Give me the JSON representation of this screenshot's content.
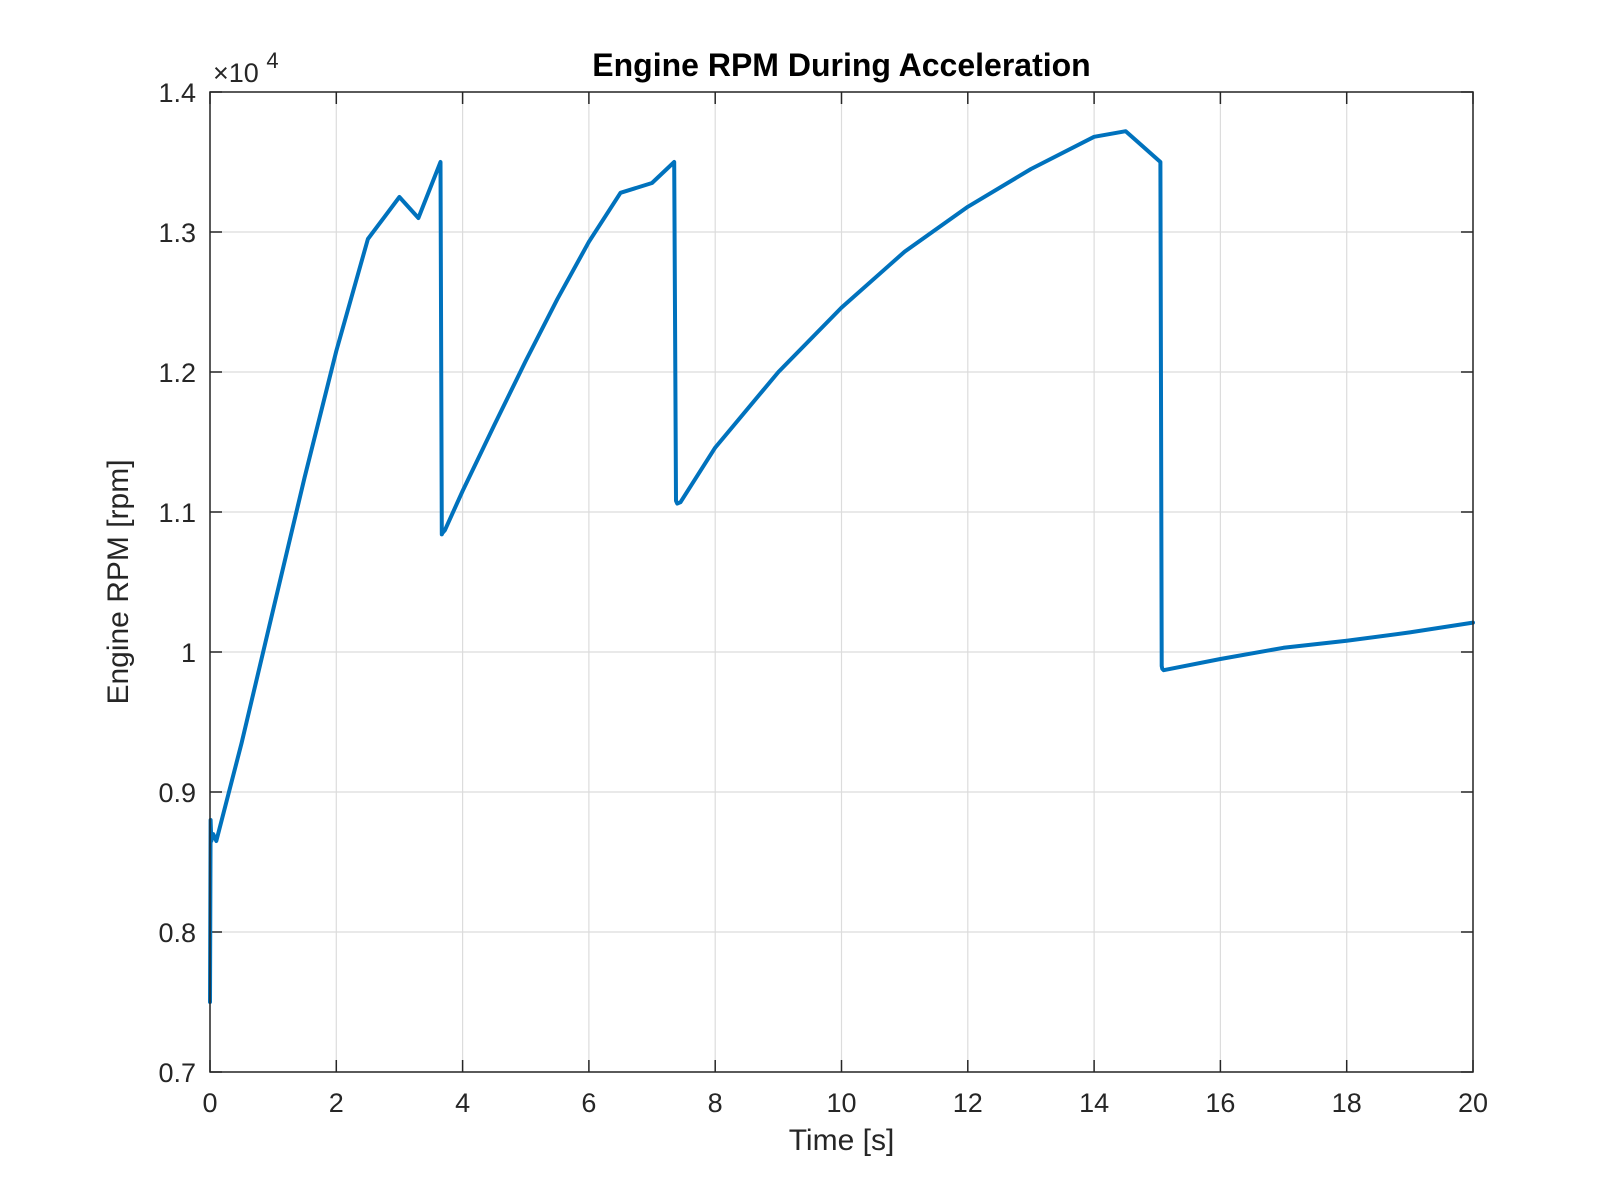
{
  "chart_data": {
    "type": "line",
    "title": "Engine RPM During Acceleration",
    "xlabel": "Time [s]",
    "ylabel": "Engine RPM [rpm]",
    "xlim": [
      0,
      20
    ],
    "ylim": [
      7000,
      14000
    ],
    "y_exponent_label": {
      "base": "×10",
      "exponent": "4"
    },
    "grid": true,
    "x_ticks": [
      0,
      2,
      4,
      6,
      8,
      10,
      12,
      14,
      16,
      18,
      20
    ],
    "x_tick_labels": [
      "0",
      "2",
      "4",
      "6",
      "8",
      "10",
      "12",
      "14",
      "16",
      "18",
      "20"
    ],
    "y_ticks": [
      7000,
      8000,
      9000,
      10000,
      11000,
      12000,
      13000,
      14000
    ],
    "y_tick_labels": [
      "0.7",
      "0.8",
      "0.9",
      "1",
      "1.1",
      "1.2",
      "1.3",
      "1.4"
    ],
    "series": [
      {
        "color": "#0072BD",
        "x": [
          0.0,
          0.01,
          0.02,
          0.05,
          0.1,
          0.5,
          1.0,
          1.5,
          2.0,
          2.5,
          3.0,
          3.3,
          3.65,
          3.67,
          3.68,
          3.72,
          4.0,
          4.5,
          5.0,
          5.5,
          6.0,
          6.5,
          7.0,
          7.35,
          7.38,
          7.4,
          7.45,
          8.0,
          9.0,
          10.0,
          11.0,
          12.0,
          13.0,
          14.0,
          14.5,
          15.05,
          15.07,
          15.08,
          15.1,
          16.0,
          17.0,
          18.0,
          19.0,
          20.0
        ],
        "y": [
          7500,
          8800,
          8650,
          8700,
          8650,
          9350,
          10300,
          11250,
          12150,
          12950,
          13250,
          13100,
          13500,
          10840,
          10850,
          10870,
          11150,
          11620,
          12080,
          12520,
          12930,
          13280,
          13350,
          13500,
          11080,
          11060,
          11070,
          11460,
          12000,
          12460,
          12860,
          13180,
          13450,
          13680,
          13720,
          13500,
          9900,
          9880,
          9870,
          9950,
          10030,
          10080,
          10140,
          10210
        ]
      }
    ]
  }
}
